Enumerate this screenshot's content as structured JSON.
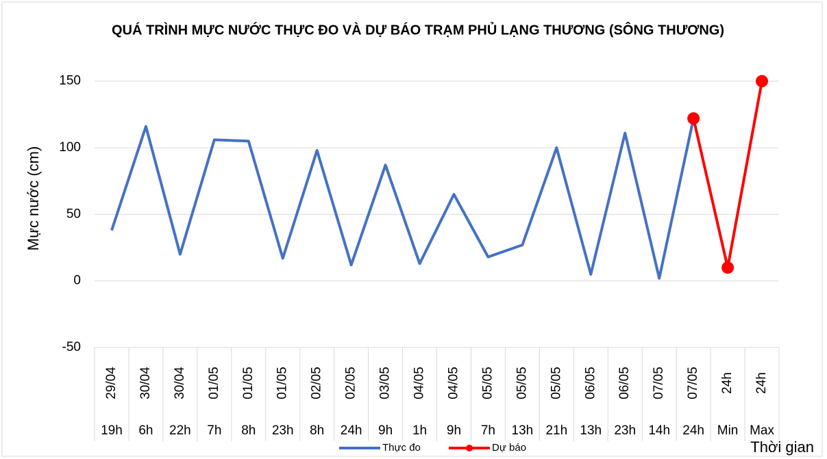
{
  "chart_data": {
    "type": "line",
    "title": "QUÁ TRÌNH MỰC NƯỚC THỰC ĐO VÀ DỰ BÁO TRẠM PHỦ LẠNG THƯƠNG (SÔNG THƯƠNG)",
    "y_label": "Mực nước (cm)",
    "x_label": "Thời gian",
    "categories": [
      [
        "29/04",
        "19h"
      ],
      [
        "30/04",
        "6h"
      ],
      [
        "30/04",
        "22h"
      ],
      [
        "01/05",
        "7h"
      ],
      [
        "01/05",
        "8h"
      ],
      [
        "01/05",
        "23h"
      ],
      [
        "02/05",
        "8h"
      ],
      [
        "02/05",
        "24h"
      ],
      [
        "03/05",
        "9h"
      ],
      [
        "04/05",
        "1h"
      ],
      [
        "04/05",
        "9h"
      ],
      [
        "05/05",
        "7h"
      ],
      [
        "05/05",
        "13h"
      ],
      [
        "05/05",
        "21h"
      ],
      [
        "06/05",
        "13h"
      ],
      [
        "06/05",
        "23h"
      ],
      [
        "07/05",
        "14h"
      ],
      [
        "07/05",
        "24h"
      ],
      [
        "24h",
        "Min"
      ],
      [
        "24h",
        "Max"
      ]
    ],
    "series": [
      {
        "name": "Thực đo",
        "color": "#4472c4",
        "values": [
          38,
          116,
          20,
          106,
          105,
          17,
          98,
          12,
          87,
          13,
          65,
          18,
          27,
          100,
          5,
          111,
          2,
          122,
          null,
          null
        ]
      },
      {
        "name": "Dự báo",
        "color": "#ff0000",
        "values": [
          null,
          null,
          null,
          null,
          null,
          null,
          null,
          null,
          null,
          null,
          null,
          null,
          null,
          null,
          null,
          null,
          null,
          122,
          10,
          150
        ]
      }
    ],
    "ylim": [
      -50,
      175
    ],
    "yticks": [
      -50,
      0,
      50,
      100,
      150
    ],
    "grid": true
  }
}
